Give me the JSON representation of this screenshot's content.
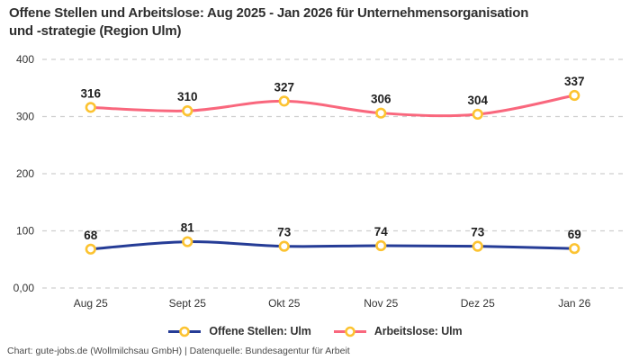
{
  "header": {
    "title": "Offene Stellen und Arbeitslose: Aug 2025 - Jan 2026 für Unternehmensorganisation\nund -strategie (Region Ulm)"
  },
  "chart_data": {
    "type": "line",
    "title": "Offene Stellen und Arbeitslose: Aug 2025 - Jan 2026 für Unternehmensorganisation und -strategie (Region Ulm)",
    "categories": [
      "Aug 25",
      "Sept 25",
      "Okt 25",
      "Nov 25",
      "Dez 25",
      "Jan 26"
    ],
    "series": [
      {
        "name": "Offene Stellen: Ulm",
        "values": [
          68,
          81,
          73,
          74,
          73,
          69
        ],
        "color": "#253C96"
      },
      {
        "name": "Arbeitslose: Ulm",
        "values": [
          316,
          310,
          327,
          306,
          304,
          337
        ],
        "color": "#F9677D"
      }
    ],
    "marker": {
      "fill": "#FFFFFF",
      "stroke": "#FCC331"
    },
    "y_ticks": [
      {
        "label": "0,00",
        "value": 0
      },
      {
        "label": "100",
        "value": 100
      },
      {
        "label": "200",
        "value": 200
      },
      {
        "label": "300",
        "value": 300
      },
      {
        "label": "400",
        "value": 400
      }
    ],
    "ylim": [
      0,
      400
    ],
    "grid": "horizontal-dashed",
    "grid_color": "#CFCFCF",
    "legend_position": "bottom",
    "data_labels": true,
    "curve": "smooth"
  },
  "footer": {
    "credit": "Chart: gute-jobs.de (Wollmilchsau GmbH) | Datenquelle: Bundesagentur für Arbeit"
  }
}
